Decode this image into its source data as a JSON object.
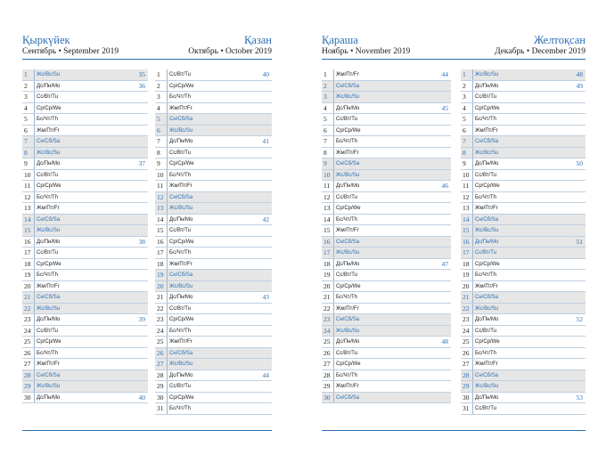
{
  "spreads": [
    {
      "left": {
        "name": "Қыркүйек",
        "sub": "Сентябрь • September 2019"
      },
      "right": {
        "name": "Қазан",
        "sub": "Октябрь • October 2019"
      },
      "months": [
        {
          "rows": [
            {
              "n": "1",
              "d": "Жс/Вс/Su",
              "w": "35",
              "we": true
            },
            {
              "n": "2",
              "d": "Дс/Пн/Mo",
              "w": "36",
              "we": false
            },
            {
              "n": "3",
              "d": "Сс/Вт/Tu",
              "w": "",
              "we": false
            },
            {
              "n": "4",
              "d": "Ср/Ср/We",
              "w": "",
              "we": false
            },
            {
              "n": "5",
              "d": "Бс/Чт/Th",
              "w": "",
              "we": false
            },
            {
              "n": "6",
              "d": "Жм/Пт/Fr",
              "w": "",
              "we": false
            },
            {
              "n": "7",
              "d": "Сн/Сб/Sa",
              "w": "",
              "we": true
            },
            {
              "n": "8",
              "d": "Жс/Вс/Su",
              "w": "",
              "we": true
            },
            {
              "n": "9",
              "d": "Дс/Пн/Mo",
              "w": "37",
              "we": false
            },
            {
              "n": "10",
              "d": "Сс/Вт/Tu",
              "w": "",
              "we": false
            },
            {
              "n": "11",
              "d": "Ср/Ср/We",
              "w": "",
              "we": false
            },
            {
              "n": "12",
              "d": "Бс/Чт/Th",
              "w": "",
              "we": false
            },
            {
              "n": "13",
              "d": "Жм/Пт/Fr",
              "w": "",
              "we": false
            },
            {
              "n": "14",
              "d": "Сн/Сб/Sa",
              "w": "",
              "we": true
            },
            {
              "n": "15",
              "d": "Жс/Вс/Su",
              "w": "",
              "we": true
            },
            {
              "n": "16",
              "d": "Дс/Пн/Mo",
              "w": "38",
              "we": false
            },
            {
              "n": "17",
              "d": "Сс/Вт/Tu",
              "w": "",
              "we": false
            },
            {
              "n": "18",
              "d": "Ср/Ср/We",
              "w": "",
              "we": false
            },
            {
              "n": "19",
              "d": "Бс/Чт/Th",
              "w": "",
              "we": false
            },
            {
              "n": "20",
              "d": "Жм/Пт/Fr",
              "w": "",
              "we": false
            },
            {
              "n": "21",
              "d": "Сн/Сб/Sa",
              "w": "",
              "we": true
            },
            {
              "n": "22",
              "d": "Жс/Вс/Su",
              "w": "",
              "we": true
            },
            {
              "n": "23",
              "d": "Дс/Пн/Mo",
              "w": "39",
              "we": false
            },
            {
              "n": "24",
              "d": "Сс/Вт/Tu",
              "w": "",
              "we": false
            },
            {
              "n": "25",
              "d": "Ср/Ср/We",
              "w": "",
              "we": false
            },
            {
              "n": "26",
              "d": "Бс/Чт/Th",
              "w": "",
              "we": false
            },
            {
              "n": "27",
              "d": "Жм/Пт/Fr",
              "w": "",
              "we": false
            },
            {
              "n": "28",
              "d": "Сн/Сб/Sa",
              "w": "",
              "we": true
            },
            {
              "n": "29",
              "d": "Жс/Вс/Su",
              "w": "",
              "we": true
            },
            {
              "n": "30",
              "d": "Дс/Пн/Mo",
              "w": "40",
              "we": false
            }
          ]
        },
        {
          "rows": [
            {
              "n": "1",
              "d": "Сс/Вт/Tu",
              "w": "40",
              "we": false
            },
            {
              "n": "2",
              "d": "Ср/Ср/We",
              "w": "",
              "we": false
            },
            {
              "n": "3",
              "d": "Бс/Чт/Th",
              "w": "",
              "we": false
            },
            {
              "n": "4",
              "d": "Жм/Пт/Fr",
              "w": "",
              "we": false
            },
            {
              "n": "5",
              "d": "Сн/Сб/Sa",
              "w": "",
              "we": true
            },
            {
              "n": "6",
              "d": "Жс/Вс/Su",
              "w": "",
              "we": true
            },
            {
              "n": "7",
              "d": "Дс/Пн/Mo",
              "w": "41",
              "we": false
            },
            {
              "n": "8",
              "d": "Сс/Вт/Tu",
              "w": "",
              "we": false
            },
            {
              "n": "9",
              "d": "Ср/Ср/We",
              "w": "",
              "we": false
            },
            {
              "n": "10",
              "d": "Бс/Чт/Th",
              "w": "",
              "we": false
            },
            {
              "n": "11",
              "d": "Жм/Пт/Fr",
              "w": "",
              "we": false
            },
            {
              "n": "12",
              "d": "Сн/Сб/Sa",
              "w": "",
              "we": true
            },
            {
              "n": "13",
              "d": "Жс/Вс/Su",
              "w": "",
              "we": true
            },
            {
              "n": "14",
              "d": "Дс/Пн/Mo",
              "w": "42",
              "we": false
            },
            {
              "n": "15",
              "d": "Сс/Вт/Tu",
              "w": "",
              "we": false
            },
            {
              "n": "16",
              "d": "Ср/Ср/We",
              "w": "",
              "we": false
            },
            {
              "n": "17",
              "d": "Бс/Чт/Th",
              "w": "",
              "we": false
            },
            {
              "n": "18",
              "d": "Жм/Пт/Fr",
              "w": "",
              "we": false
            },
            {
              "n": "19",
              "d": "Сн/Сб/Sa",
              "w": "",
              "we": true
            },
            {
              "n": "20",
              "d": "Жс/Вс/Su",
              "w": "",
              "we": true
            },
            {
              "n": "21",
              "d": "Дс/Пн/Mo",
              "w": "43",
              "we": false
            },
            {
              "n": "22",
              "d": "Сс/Вт/Tu",
              "w": "",
              "we": false
            },
            {
              "n": "23",
              "d": "Ср/Ср/We",
              "w": "",
              "we": false
            },
            {
              "n": "24",
              "d": "Бс/Чт/Th",
              "w": "",
              "we": false
            },
            {
              "n": "25",
              "d": "Жм/Пт/Fr",
              "w": "",
              "we": false
            },
            {
              "n": "26",
              "d": "Сн/Сб/Sa",
              "w": "",
              "we": true
            },
            {
              "n": "27",
              "d": "Жс/Вс/Su",
              "w": "",
              "we": true
            },
            {
              "n": "28",
              "d": "Дс/Пн/Mo",
              "w": "44",
              "we": false
            },
            {
              "n": "29",
              "d": "Сс/Вт/Tu",
              "w": "",
              "we": false
            },
            {
              "n": "30",
              "d": "Ср/Ср/We",
              "w": "",
              "we": false
            },
            {
              "n": "31",
              "d": "Бс/Чт/Th",
              "w": "",
              "we": false
            }
          ]
        }
      ]
    },
    {
      "left": {
        "name": "Қараша",
        "sub": "Ноябрь • November 2019"
      },
      "right": {
        "name": "Желтоқсан",
        "sub": "Декабрь • December 2019"
      },
      "months": [
        {
          "rows": [
            {
              "n": "1",
              "d": "Жм/Пт/Fr",
              "w": "44",
              "we": false
            },
            {
              "n": "2",
              "d": "Сн/Сб/Sa",
              "w": "",
              "we": true
            },
            {
              "n": "3",
              "d": "Жс/Вс/Su",
              "w": "",
              "we": true
            },
            {
              "n": "4",
              "d": "Дс/Пн/Mo",
              "w": "45",
              "we": false
            },
            {
              "n": "5",
              "d": "Сс/Вт/Tu",
              "w": "",
              "we": false
            },
            {
              "n": "6",
              "d": "Ср/Ср/We",
              "w": "",
              "we": false
            },
            {
              "n": "7",
              "d": "Бс/Чт/Th",
              "w": "",
              "we": false
            },
            {
              "n": "8",
              "d": "Жм/Пт/Fr",
              "w": "",
              "we": false
            },
            {
              "n": "9",
              "d": "Сн/Сб/Sa",
              "w": "",
              "we": true
            },
            {
              "n": "10",
              "d": "Жс/Вс/Su",
              "w": "",
              "we": true
            },
            {
              "n": "11",
              "d": "Дс/Пн/Mo",
              "w": "46",
              "we": false
            },
            {
              "n": "12",
              "d": "Сс/Вт/Tu",
              "w": "",
              "we": false
            },
            {
              "n": "13",
              "d": "Ср/Ср/We",
              "w": "",
              "we": false
            },
            {
              "n": "14",
              "d": "Бс/Чт/Th",
              "w": "",
              "we": false
            },
            {
              "n": "15",
              "d": "Жм/Пт/Fr",
              "w": "",
              "we": false
            },
            {
              "n": "16",
              "d": "Сн/Сб/Sa",
              "w": "",
              "we": true
            },
            {
              "n": "17",
              "d": "Жс/Вс/Su",
              "w": "",
              "we": true
            },
            {
              "n": "18",
              "d": "Дс/Пн/Mo",
              "w": "47",
              "we": false
            },
            {
              "n": "19",
              "d": "Сс/Вт/Tu",
              "w": "",
              "we": false
            },
            {
              "n": "20",
              "d": "Ср/Ср/We",
              "w": "",
              "we": false
            },
            {
              "n": "21",
              "d": "Бс/Чт/Th",
              "w": "",
              "we": false
            },
            {
              "n": "22",
              "d": "Жм/Пт/Fr",
              "w": "",
              "we": false
            },
            {
              "n": "23",
              "d": "Сн/Сб/Sa",
              "w": "",
              "we": true
            },
            {
              "n": "24",
              "d": "Жс/Вс/Su",
              "w": "",
              "we": true
            },
            {
              "n": "25",
              "d": "Дс/Пн/Mo",
              "w": "48",
              "we": false
            },
            {
              "n": "26",
              "d": "Сс/Вт/Tu",
              "w": "",
              "we": false
            },
            {
              "n": "27",
              "d": "Ср/Ср/We",
              "w": "",
              "we": false
            },
            {
              "n": "28",
              "d": "Бс/Чт/Th",
              "w": "",
              "we": false
            },
            {
              "n": "29",
              "d": "Жм/Пт/Fr",
              "w": "",
              "we": false
            },
            {
              "n": "30",
              "d": "Сн/Сб/Sa",
              "w": "",
              "we": true
            }
          ]
        },
        {
          "rows": [
            {
              "n": "1",
              "d": "Жс/Вс/Su",
              "w": "48",
              "we": true
            },
            {
              "n": "2",
              "d": "Дс/Пн/Mo",
              "w": "49",
              "we": false
            },
            {
              "n": "3",
              "d": "Сс/Вт/Tu",
              "w": "",
              "we": false
            },
            {
              "n": "4",
              "d": "Ср/Ср/We",
              "w": "",
              "we": false
            },
            {
              "n": "5",
              "d": "Бс/Чт/Th",
              "w": "",
              "we": false
            },
            {
              "n": "6",
              "d": "Жм/Пт/Fr",
              "w": "",
              "we": false
            },
            {
              "n": "7",
              "d": "Сн/Сб/Sa",
              "w": "",
              "we": true
            },
            {
              "n": "8",
              "d": "Жс/Вс/Su",
              "w": "",
              "we": true
            },
            {
              "n": "9",
              "d": "Дс/Пн/Mo",
              "w": "50",
              "we": false
            },
            {
              "n": "10",
              "d": "Сс/Вт/Tu",
              "w": "",
              "we": false
            },
            {
              "n": "11",
              "d": "Ср/Ср/We",
              "w": "",
              "we": false
            },
            {
              "n": "12",
              "d": "Бс/Чт/Th",
              "w": "",
              "we": false
            },
            {
              "n": "13",
              "d": "Жм/Пт/Fr",
              "w": "",
              "we": false
            },
            {
              "n": "14",
              "d": "Сн/Сб/Sa",
              "w": "",
              "we": true
            },
            {
              "n": "15",
              "d": "Жс/Вс/Su",
              "w": "",
              "we": true
            },
            {
              "n": "16",
              "d": "Дс/Пн/Mo",
              "w": "51",
              "we": true
            },
            {
              "n": "17",
              "d": "Сс/Вт/Tu",
              "w": "",
              "we": true
            },
            {
              "n": "18",
              "d": "Ср/Ср/We",
              "w": "",
              "we": false
            },
            {
              "n": "19",
              "d": "Бс/Чт/Th",
              "w": "",
              "we": false
            },
            {
              "n": "20",
              "d": "Жм/Пт/Fr",
              "w": "",
              "we": false
            },
            {
              "n": "21",
              "d": "Сн/Сб/Sa",
              "w": "",
              "we": true
            },
            {
              "n": "22",
              "d": "Жс/Вс/Su",
              "w": "",
              "we": true
            },
            {
              "n": "23",
              "d": "Дс/Пн/Mo",
              "w": "52",
              "we": false
            },
            {
              "n": "24",
              "d": "Сс/Вт/Tu",
              "w": "",
              "we": false
            },
            {
              "n": "25",
              "d": "Ср/Ср/We",
              "w": "",
              "we": false
            },
            {
              "n": "26",
              "d": "Бс/Чт/Th",
              "w": "",
              "we": false
            },
            {
              "n": "27",
              "d": "Жм/Пт/Fr",
              "w": "",
              "we": false
            },
            {
              "n": "28",
              "d": "Сн/Сб/Sa",
              "w": "",
              "we": true
            },
            {
              "n": "29",
              "d": "Жс/Вс/Su",
              "w": "",
              "we": true
            },
            {
              "n": "30",
              "d": "Дс/Пн/Mo",
              "w": "53",
              "we": false
            },
            {
              "n": "31",
              "d": "Сс/Вт/Tu",
              "w": "",
              "we": false
            }
          ]
        }
      ]
    }
  ]
}
